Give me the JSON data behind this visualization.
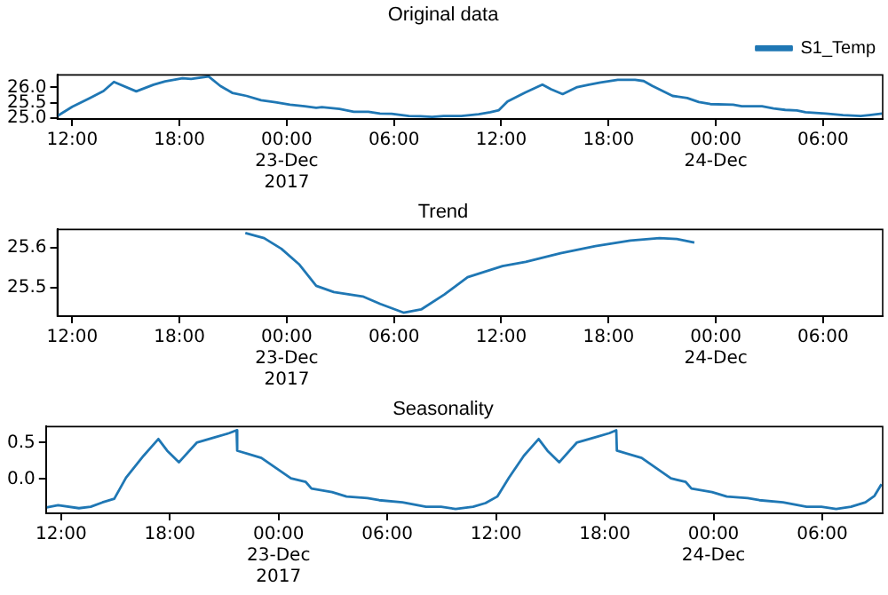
{
  "chart_data": [
    {
      "type": "line",
      "title": "Original data",
      "legend": "top right",
      "xlim": [
        "2017-12-22T11:10",
        "2017-12-24T09:20"
      ],
      "xticks": [
        {
          "value": "2017-12-22T12:00",
          "label": "12:00"
        },
        {
          "value": "2017-12-22T18:00",
          "label": "18:00"
        },
        {
          "value": "2017-12-23T00:00",
          "label": "00:00\n23-Dec\n2017"
        },
        {
          "value": "2017-12-23T06:00",
          "label": "06:00"
        },
        {
          "value": "2017-12-23T12:00",
          "label": "12:00"
        },
        {
          "value": "2017-12-23T18:00",
          "label": "18:00"
        },
        {
          "value": "2017-12-24T00:00",
          "label": "00:00\n24-Dec"
        },
        {
          "value": "2017-12-24T06:00",
          "label": "06:00"
        }
      ],
      "ylim": [
        24.96,
        26.41
      ],
      "yticks": [
        {
          "value": 25,
          "label": "25.0"
        },
        25.5,
        {
          "value": 26,
          "label": "26.0"
        }
      ],
      "series": [
        {
          "name": "S1_Temp",
          "color": "#1f77b4",
          "x": [
            "2017-12-22T11:12",
            "2017-12-22T12:00",
            "2017-12-22T12:59",
            "2017-12-22T13:45",
            "2017-12-22T14:20",
            "2017-12-22T15:35",
            "2017-12-22T16:33",
            "2017-12-22T17:12",
            "2017-12-22T18:10",
            "2017-12-22T18:39",
            "2017-12-22T19:38",
            "2017-12-22T20:17",
            "2017-12-22T20:57",
            "2017-12-22T21:45",
            "2017-12-22T22:34",
            "2017-12-22T23:22",
            "2017-12-23T00:11",
            "2017-12-23T01:00",
            "2017-12-23T01:39",
            "2017-12-23T01:58",
            "2017-12-23T02:57",
            "2017-12-23T03:45",
            "2017-12-23T04:34",
            "2017-12-23T05:13",
            "2017-12-23T05:52",
            "2017-12-23T06:50",
            "2017-12-23T07:29",
            "2017-12-23T08:08",
            "2017-12-23T08:47",
            "2017-12-23T09:46",
            "2017-12-23T10:44",
            "2017-12-23T11:23",
            "2017-12-23T11:52",
            "2017-12-23T12:21",
            "2017-12-23T13:20",
            "2017-12-23T14:18",
            "2017-12-23T14:47",
            "2017-12-23T15:26",
            "2017-12-23T16:15",
            "2017-12-23T16:54",
            "2017-12-23T17:33",
            "2017-12-23T18:31",
            "2017-12-23T19:29",
            "2017-12-23T19:58",
            "2017-12-23T20:27",
            "2017-12-23T21:35",
            "2017-12-23T22:24",
            "2017-12-23T23:03",
            "2017-12-23T23:42",
            "2017-12-24T00:58",
            "2017-12-24T01:27",
            "2017-12-24T02:35",
            "2017-12-24T03:14",
            "2017-12-24T03:53",
            "2017-12-24T04:32",
            "2017-12-24T05:01",
            "2017-12-24T06:09",
            "2017-12-24T07:07",
            "2017-12-24T08:06",
            "2017-12-24T08:35",
            "2017-12-24T09:18"
          ],
          "values": [
            25.07,
            25.36,
            25.65,
            25.88,
            26.18,
            25.87,
            26.09,
            26.2,
            26.3,
            26.28,
            26.36,
            26.05,
            25.82,
            25.72,
            25.58,
            25.51,
            25.43,
            25.38,
            25.33,
            25.35,
            25.29,
            25.2,
            25.2,
            25.14,
            25.13,
            25.06,
            25.05,
            25.03,
            25.06,
            25.06,
            25.12,
            25.18,
            25.25,
            25.54,
            25.83,
            26.09,
            25.94,
            25.78,
            26.01,
            26.09,
            26.16,
            26.25,
            26.25,
            26.21,
            26.05,
            25.72,
            25.65,
            25.52,
            25.45,
            25.43,
            25.38,
            25.38,
            25.31,
            25.26,
            25.24,
            25.18,
            25.14,
            25.09,
            25.06,
            25.09,
            25.14
          ]
        }
      ]
    },
    {
      "type": "line",
      "title": "Trend",
      "xlim": [
        "2017-12-22T11:10",
        "2017-12-24T09:20"
      ],
      "xticks": [
        {
          "value": "2017-12-22T12:00",
          "label": "12:00"
        },
        {
          "value": "2017-12-22T18:00",
          "label": "18:00"
        },
        {
          "value": "2017-12-23T00:00",
          "label": "00:00\n23-Dec\n2017"
        },
        {
          "value": "2017-12-23T06:00",
          "label": "06:00"
        },
        {
          "value": "2017-12-23T12:00",
          "label": "12:00"
        },
        {
          "value": "2017-12-23T18:00",
          "label": "18:00"
        },
        {
          "value": "2017-12-24T00:00",
          "label": "00:00\n24-Dec"
        },
        {
          "value": "2017-12-24T06:00",
          "label": "06:00"
        }
      ],
      "ylim": [
        25.427,
        25.647
      ],
      "yticks": [
        25.5,
        25.6
      ],
      "series": [
        {
          "color": "#1f77b4",
          "x": [
            "2017-12-22T21:41",
            "2017-12-22T22:44",
            "2017-12-22T23:42",
            "2017-12-23T00:41",
            "2017-12-23T01:39",
            "2017-12-23T02:38",
            "2017-12-23T04:15",
            "2017-12-23T05:14",
            "2017-12-23T06:32",
            "2017-12-23T07:31",
            "2017-12-23T08:49",
            "2017-12-23T10:07",
            "2017-12-23T12:04",
            "2017-12-23T13:22",
            "2017-12-23T15:19",
            "2017-12-23T17:16",
            "2017-12-23T19:13",
            "2017-12-23T20:51",
            "2017-12-23T21:49",
            "2017-12-23T22:48"
          ],
          "values": [
            25.638,
            25.625,
            25.598,
            25.559,
            25.504,
            25.488,
            25.477,
            25.458,
            25.436,
            25.444,
            25.482,
            25.526,
            25.554,
            25.565,
            25.587,
            25.605,
            25.619,
            25.625,
            25.623,
            25.614
          ]
        }
      ]
    },
    {
      "type": "line",
      "title": "Seasonality",
      "xlim": [
        "2017-12-22T11:10",
        "2017-12-24T09:20"
      ],
      "xticks": [
        {
          "value": "2017-12-22T12:00",
          "label": "12:00"
        },
        {
          "value": "2017-12-22T18:00",
          "label": "18:00"
        },
        {
          "value": "2017-12-23T00:00",
          "label": "00:00\n23-Dec\n2017"
        },
        {
          "value": "2017-12-23T06:00",
          "label": "06:00"
        },
        {
          "value": "2017-12-23T12:00",
          "label": "12:00"
        },
        {
          "value": "2017-12-23T18:00",
          "label": "18:00"
        },
        {
          "value": "2017-12-24T00:00",
          "label": "00:00\n24-Dec"
        },
        {
          "value": "2017-12-24T06:00",
          "label": "06:00"
        }
      ],
      "ylim": [
        -0.47,
        0.72
      ],
      "yticks": [
        {
          "value": 0,
          "label": "0.0"
        },
        0.5
      ],
      "series": [
        {
          "color": "#1f77b4",
          "x": [
            "2017-12-22T11:12",
            "2017-12-22T11:50",
            "2017-12-22T12:59",
            "2017-12-22T13:38",
            "2017-12-22T14:17",
            "2017-12-22T14:56",
            "2017-12-22T15:35",
            "2017-12-22T16:33",
            "2017-12-22T17:22",
            "2017-12-22T17:51",
            "2017-12-22T18:30",
            "2017-12-22T19:29",
            "2017-12-22T20:27",
            "2017-12-22T21:16",
            "2017-12-22T21:41",
            "2017-12-22T21:43",
            "2017-12-22T23:03",
            "2017-12-23T00:41",
            "2017-12-23T01:30",
            "2017-12-23T01:49",
            "2017-12-23T02:57",
            "2017-12-23T03:45",
            "2017-12-23T04:54",
            "2017-12-23T05:33",
            "2017-12-23T06:50",
            "2017-12-23T08:08",
            "2017-12-23T08:58",
            "2017-12-23T09:46",
            "2017-12-23T10:44",
            "2017-12-23T11:25",
            "2017-12-23T12:04",
            "2017-12-23T12:43",
            "2017-12-23T13:32",
            "2017-12-23T14:21",
            "2017-12-23T14:50",
            "2017-12-23T15:29",
            "2017-12-23T16:27",
            "2017-12-23T17:26",
            "2017-12-23T18:15",
            "2017-12-23T18:38",
            "2017-12-23T18:40",
            "2017-12-23T20:02",
            "2017-12-23T21:39",
            "2017-12-23T22:28",
            "2017-12-23T22:47",
            "2017-12-23T23:55",
            "2017-12-24T00:44",
            "2017-12-24T01:53",
            "2017-12-24T02:32",
            "2017-12-24T03:50",
            "2017-12-24T05:08",
            "2017-12-24T05:57",
            "2017-12-24T06:46",
            "2017-12-24T07:35",
            "2017-12-24T08:23",
            "2017-12-24T08:53",
            "2017-12-24T09:16"
          ],
          "values": [
            -0.39,
            -0.36,
            -0.4,
            -0.38,
            -0.32,
            -0.27,
            0.02,
            0.32,
            0.55,
            0.39,
            0.23,
            0.5,
            0.57,
            0.63,
            0.67,
            0.39,
            0.29,
            0.01,
            -0.04,
            -0.13,
            -0.18,
            -0.24,
            -0.26,
            -0.29,
            -0.32,
            -0.38,
            -0.38,
            -0.41,
            -0.38,
            -0.33,
            -0.24,
            0.02,
            0.32,
            0.55,
            0.39,
            0.23,
            0.5,
            0.57,
            0.63,
            0.67,
            0.39,
            0.29,
            0.01,
            -0.04,
            -0.13,
            -0.18,
            -0.24,
            -0.26,
            -0.29,
            -0.32,
            -0.38,
            -0.38,
            -0.41,
            -0.38,
            -0.32,
            -0.23,
            -0.07
          ]
        }
      ]
    }
  ]
}
